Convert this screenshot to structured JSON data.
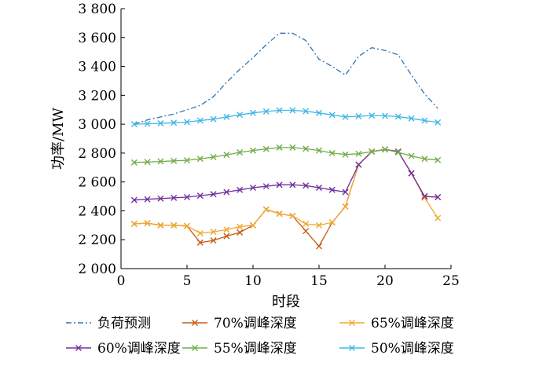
{
  "chart_data": {
    "type": "line",
    "title": "",
    "xlabel": "时段",
    "ylabel": "功率/MW",
    "xlim": [
      0,
      25
    ],
    "ylim": [
      2000,
      3800
    ],
    "x_ticks": [
      0,
      5,
      10,
      15,
      20,
      25
    ],
    "y_ticks": [
      2000,
      2200,
      2400,
      2600,
      2800,
      3000,
      3200,
      3400,
      3600,
      3800
    ],
    "x_tick_labels": [
      "0",
      "5",
      "10",
      "15",
      "20",
      "25"
    ],
    "y_tick_labels": [
      "2 000",
      "2 200",
      "2 400",
      "2 600",
      "2 800",
      "3 000",
      "3 200",
      "3 400",
      "3 600",
      "3 800"
    ],
    "grid": false,
    "legend_position": "bottom",
    "x": [
      1,
      2,
      3,
      4,
      5,
      6,
      7,
      8,
      9,
      10,
      11,
      12,
      13,
      14,
      15,
      16,
      17,
      18,
      19,
      20,
      21,
      22,
      23,
      24
    ],
    "series": [
      {
        "name": "负荷预测",
        "color": "#2e75b6",
        "style": "dashdot",
        "marker": "none",
        "values": [
          3000,
          3030,
          3050,
          3070,
          3100,
          3130,
          3190,
          3290,
          3380,
          3460,
          3550,
          3630,
          3630,
          3580,
          3450,
          3400,
          3340,
          3470,
          3530,
          3510,
          3480,
          3340,
          3210,
          3110
        ]
      },
      {
        "name": "70%调峰深度",
        "color": "#c55a11",
        "style": "solid",
        "marker": "x",
        "values": [
          2310,
          2315,
          2300,
          2300,
          2295,
          2180,
          2195,
          2225,
          2250,
          2300,
          2410,
          2380,
          2365,
          2260,
          2155,
          2320,
          2430,
          2720,
          2810,
          2825,
          2810,
          2660,
          2500,
          2495
        ]
      },
      {
        "name": "65%调峰深度",
        "color": "#f0a830",
        "style": "solid",
        "marker": "x",
        "values": [
          2310,
          2315,
          2300,
          2300,
          2295,
          2245,
          2255,
          2270,
          2290,
          2300,
          2410,
          2380,
          2365,
          2310,
          2300,
          2320,
          2430,
          2720,
          2810,
          2825,
          2810,
          2660,
          2490,
          2350
        ]
      },
      {
        "name": "60%调峰深度",
        "color": "#7030a0",
        "style": "solid",
        "marker": "x",
        "values": [
          2475,
          2480,
          2485,
          2490,
          2495,
          2505,
          2515,
          2530,
          2545,
          2560,
          2570,
          2580,
          2580,
          2575,
          2560,
          2545,
          2530,
          2720,
          2810,
          2825,
          2810,
          2660,
          2500,
          2495
        ]
      },
      {
        "name": "55%调峰深度",
        "color": "#70ad47",
        "style": "solid",
        "marker": "x",
        "values": [
          2735,
          2738,
          2742,
          2746,
          2750,
          2760,
          2772,
          2788,
          2805,
          2818,
          2828,
          2838,
          2838,
          2830,
          2818,
          2800,
          2790,
          2795,
          2810,
          2825,
          2805,
          2780,
          2760,
          2752
        ]
      },
      {
        "name": "50%调峰深度",
        "color": "#41b6e6",
        "style": "solid",
        "marker": "x",
        "values": [
          3000,
          3003,
          3006,
          3010,
          3015,
          3025,
          3035,
          3050,
          3065,
          3078,
          3088,
          3096,
          3096,
          3090,
          3078,
          3064,
          3050,
          3055,
          3060,
          3058,
          3052,
          3040,
          3025,
          3012
        ]
      }
    ]
  }
}
